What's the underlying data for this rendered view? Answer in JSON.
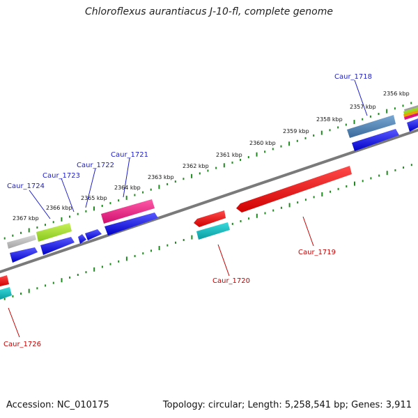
{
  "title": "Chloroflexus aurantiacus J-10-fl, complete genome",
  "accession": "Accession: NC_010175",
  "summary": "Topology: circular; Length: 5,258,541 bp; Genes: 3,911",
  "ruler_labels": [
    "2367 kbp",
    "2366 kbp",
    "2365 kbp",
    "2364 kbp",
    "2363 kbp",
    "2362 kbp",
    "2361 kbp",
    "2360 kbp",
    "2359 kbp",
    "2358 kbp",
    "2357 kbp",
    "2356 kbp"
  ],
  "genes_top": [
    "Caur_1724",
    "Caur_1723",
    "Caur_1722",
    "Caur_1721",
    "Caur_1718"
  ],
  "genes_bottom": [
    "Caur_1726",
    "Caur_1720",
    "Caur_1719"
  ],
  "colors": {
    "backbone": "#7a7a7a",
    "ruler": "#1f8a1f",
    "blue": "#0a0adc",
    "red": "#e60000",
    "magenta": "#e0147e",
    "lime": "#9ad826",
    "grey": "#b4b4b4",
    "teal": "#12b4b8",
    "steel": "#4a7fb0"
  }
}
